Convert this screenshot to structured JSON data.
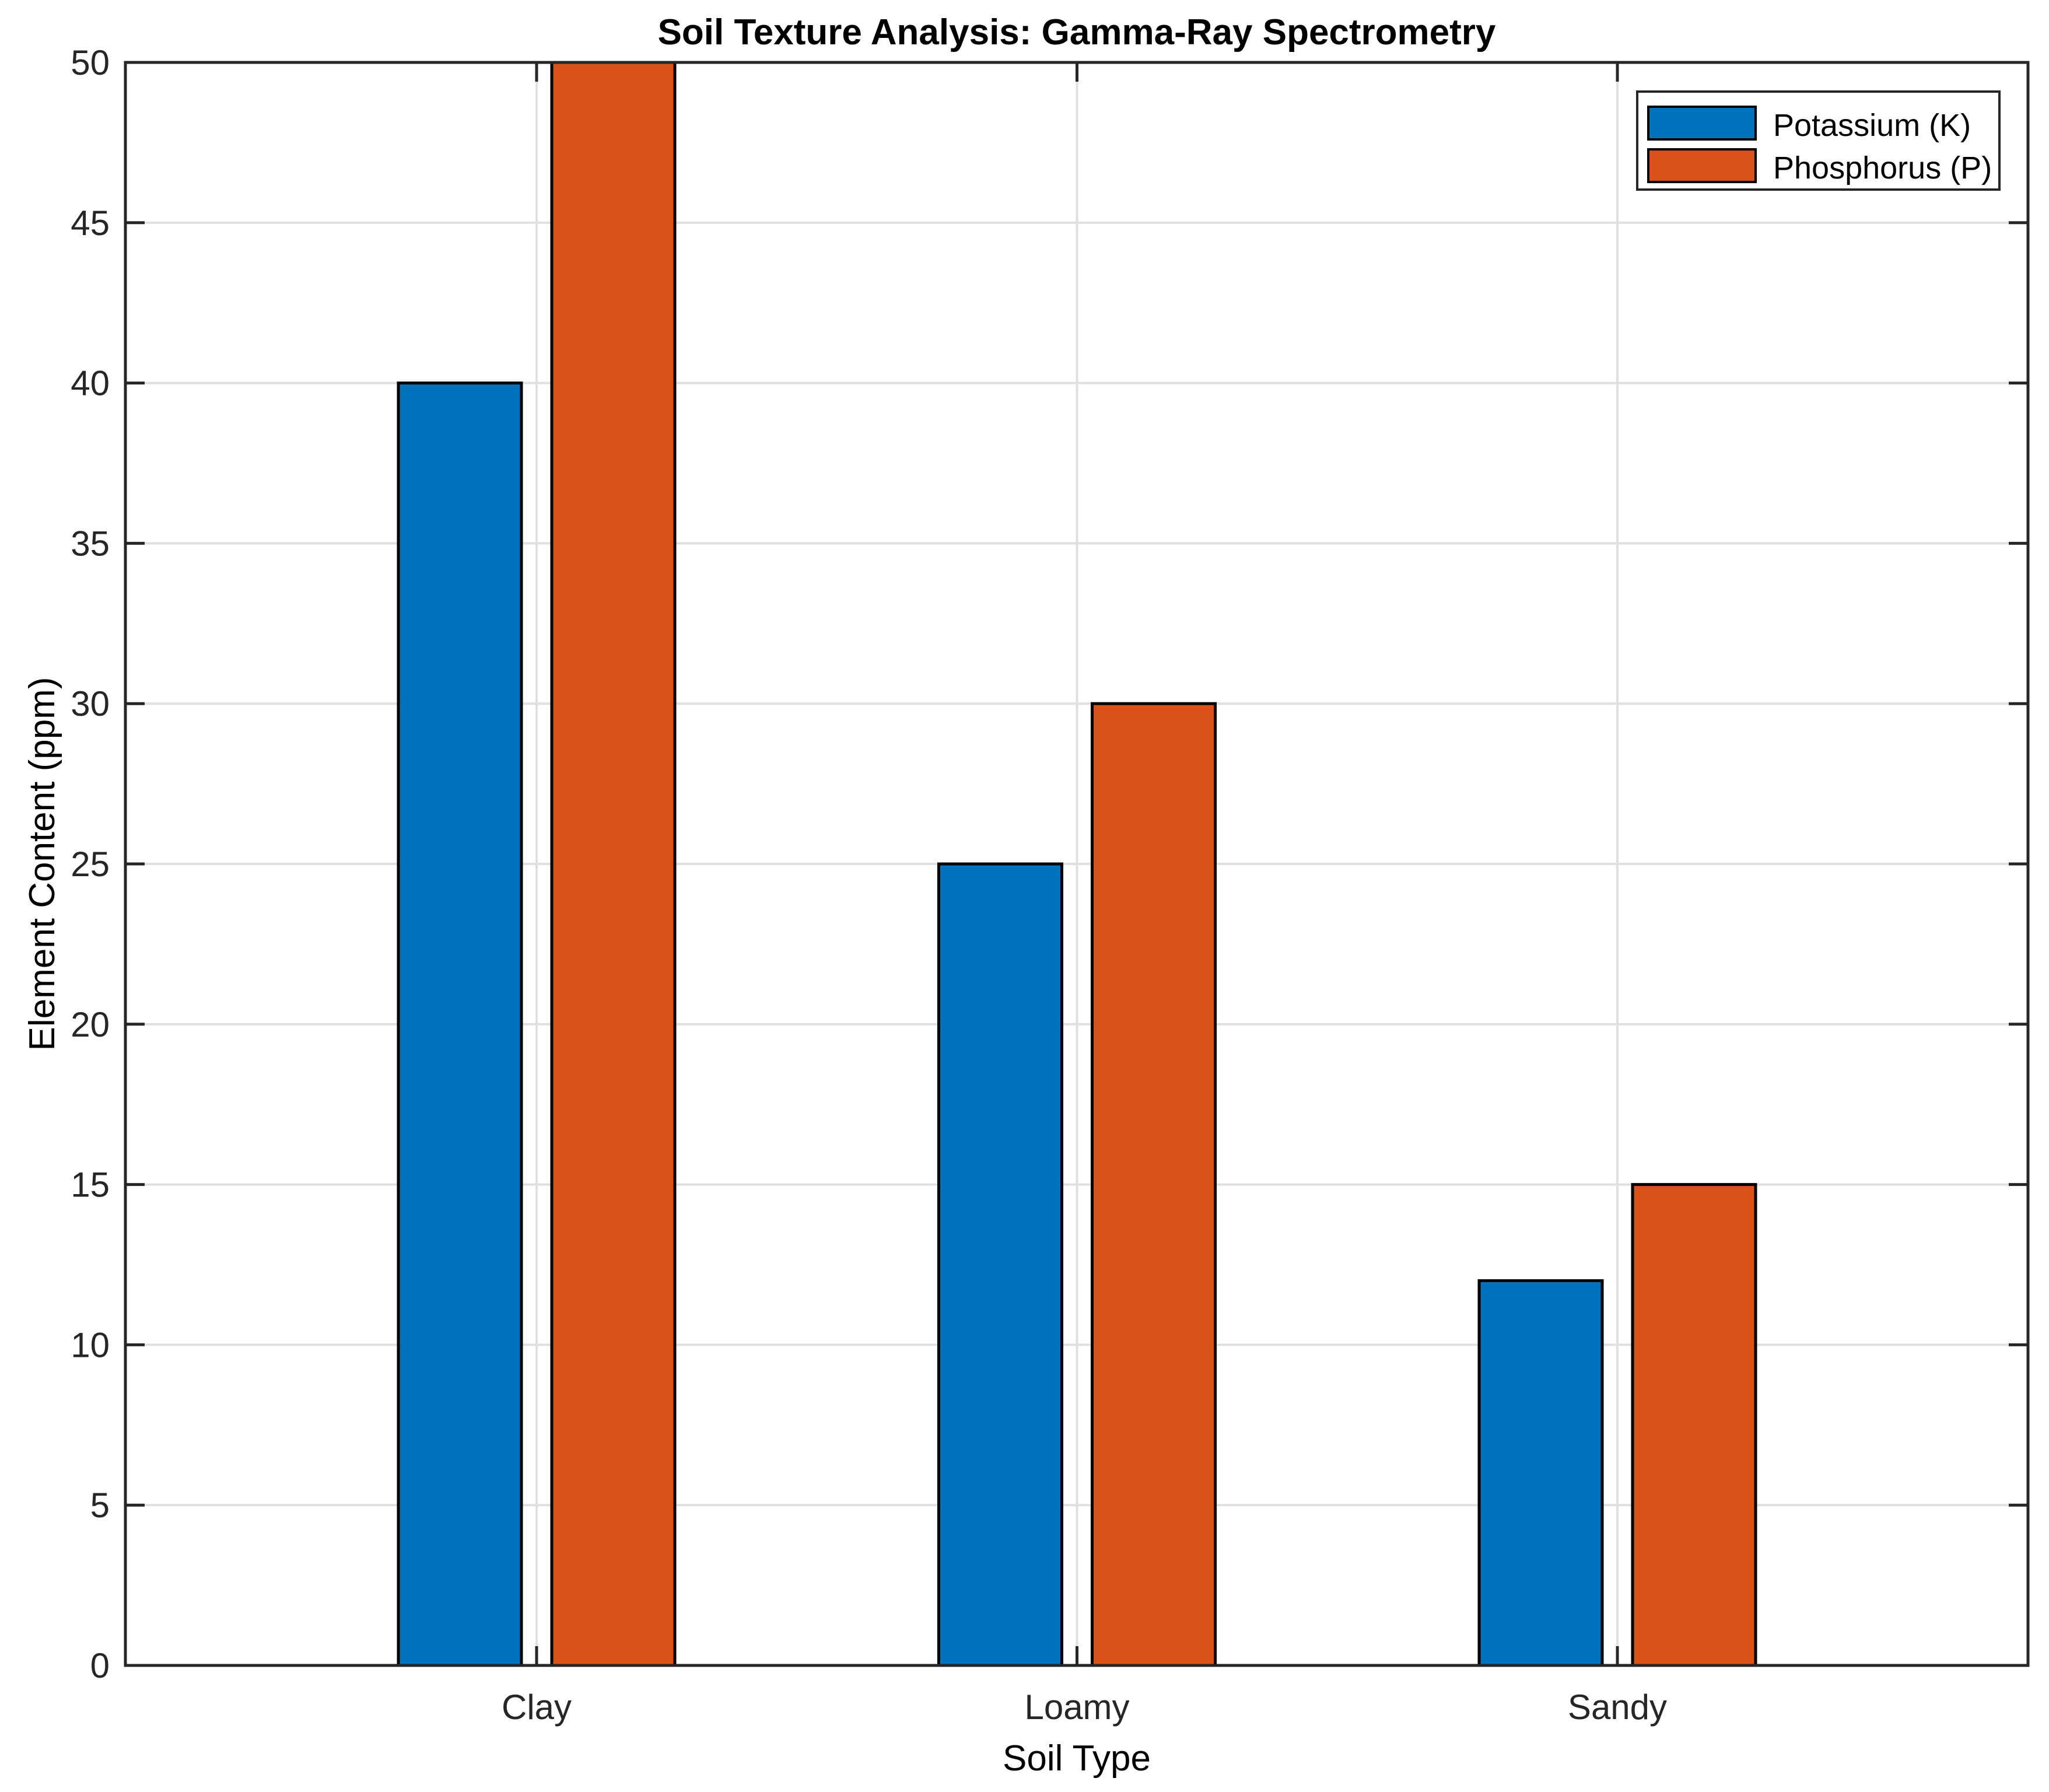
{
  "chart_data": {
    "type": "bar",
    "title": "Soil Texture Analysis: Gamma-Ray Spectrometry",
    "xlabel": "Soil Type",
    "ylabel": "Element Content (ppm)",
    "categories": [
      "Clay",
      "Loamy",
      "Sandy"
    ],
    "series": [
      {
        "name": "Potassium (K)",
        "color": "#0072BD",
        "values": [
          40,
          25,
          12
        ]
      },
      {
        "name": "Phosphorus (P)",
        "color": "#D95319",
        "values": [
          50,
          30,
          15
        ]
      }
    ],
    "ylim": [
      0,
      50
    ],
    "yticks": [
      0,
      5,
      10,
      15,
      20,
      25,
      30,
      35,
      40,
      45,
      50
    ],
    "grid": true,
    "legend_position": "top-right",
    "colors": {
      "bar_edge": "#000000",
      "grid": "#E0E0E0",
      "axis": "#262626",
      "background": "#FFFFFF"
    }
  }
}
